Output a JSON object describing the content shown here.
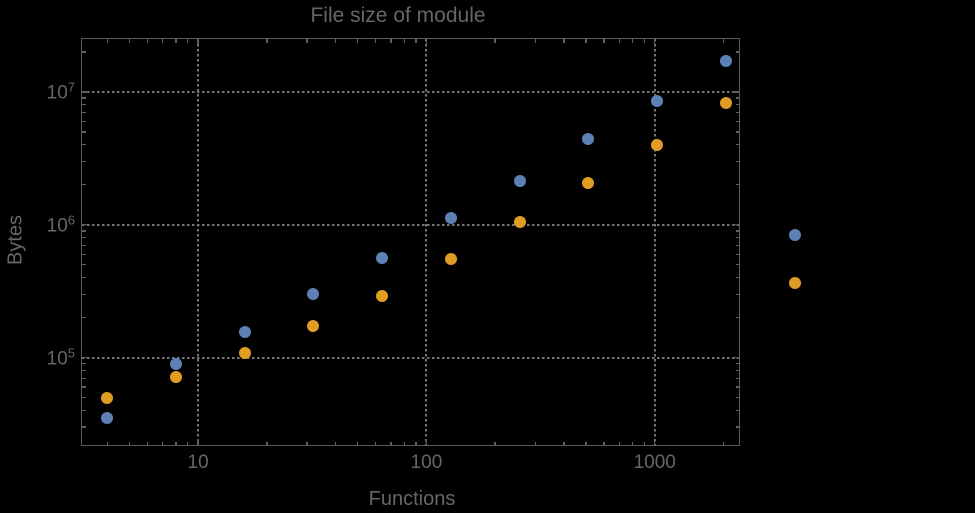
{
  "colors": {
    "background": "#000000",
    "frame": "#5a5a5a",
    "grid": "#757575",
    "text": "#666666",
    "series_blue": "#5e81b5",
    "series_orange": "#e19c24"
  },
  "chart_data": {
    "type": "scatter",
    "title": "File size of module",
    "xlabel": "Functions",
    "ylabel": "Bytes",
    "xscale": "log",
    "yscale": "log",
    "xlim": [
      3.1,
      2340
    ],
    "ylim": [
      22000,
      25000000
    ],
    "grid": "dotted",
    "legend": "none",
    "x_major_ticks": [
      {
        "value": 10,
        "label": "10"
      },
      {
        "value": 100,
        "label": "100"
      },
      {
        "value": 1000,
        "label": "1000"
      }
    ],
    "y_major_ticks": [
      {
        "value": 100000,
        "base": "10",
        "exp": "5"
      },
      {
        "value": 1000000,
        "base": "10",
        "exp": "6"
      },
      {
        "value": 10000000,
        "base": "10",
        "exp": "7"
      }
    ],
    "series": [
      {
        "name": "series-blue",
        "color": "#5e81b5",
        "points": [
          [
            4,
            35000
          ],
          [
            8,
            89000
          ],
          [
            16,
            155000
          ],
          [
            32,
            300000
          ],
          [
            64,
            560000
          ],
          [
            128,
            1130000
          ],
          [
            256,
            2150000
          ],
          [
            512,
            4400000
          ],
          [
            1024,
            8600000
          ],
          [
            2048,
            17000000
          ],
          [
            4096,
            840000
          ]
        ]
      },
      {
        "name": "series-orange",
        "color": "#e19c24",
        "points": [
          [
            4,
            50000
          ],
          [
            8,
            71000
          ],
          [
            16,
            108000
          ],
          [
            32,
            172000
          ],
          [
            64,
            290000
          ],
          [
            128,
            550000
          ],
          [
            256,
            1050000
          ],
          [
            512,
            2050000
          ],
          [
            1024,
            4000000
          ],
          [
            2048,
            8200000
          ],
          [
            4096,
            365000
          ]
        ]
      }
    ]
  }
}
